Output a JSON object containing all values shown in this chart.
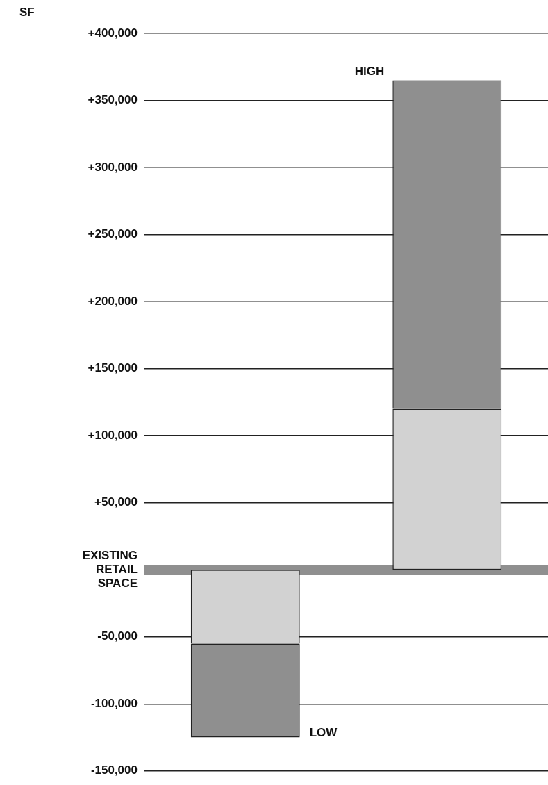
{
  "chart_data": {
    "type": "bar",
    "stacked": true,
    "ylabel": "SF",
    "categories": [
      null,
      null
    ],
    "tick_labels": "y",
    "annotations": [
      "LOW",
      "HIGH"
    ],
    "series": [
      {
        "color": "#d2d2d2",
        "values": [
          -55000,
          120000
        ]
      },
      {
        "color": "#8f8f8f",
        "values": [
          -70000,
          245000
        ]
      }
    ],
    "ylim": [
      -150000,
      400000
    ],
    "yticks": [
      {
        "value": -150000,
        "label": "-150,000"
      },
      {
        "value": -100000,
        "label": "-100,000"
      },
      {
        "value": -50000,
        "label": "-50,000"
      },
      {
        "value": 50000,
        "label": "+50,000"
      },
      {
        "value": 100000,
        "label": "+100,000"
      },
      {
        "value": 150000,
        "label": "+150,000"
      },
      {
        "value": 200000,
        "label": "+200,000"
      },
      {
        "value": 250000,
        "label": "+250,000"
      },
      {
        "value": 300000,
        "label": "+300,000"
      },
      {
        "value": 350000,
        "label": "+350,000"
      },
      {
        "value": 400000,
        "label": "+400,000"
      }
    ],
    "grid": "y",
    "legend": false,
    "ref_lines": [
      {
        "axis": "y",
        "value": 0,
        "label": "EXISTING RETAIL SPACE",
        "color": "#8f8f8f"
      }
    ]
  }
}
